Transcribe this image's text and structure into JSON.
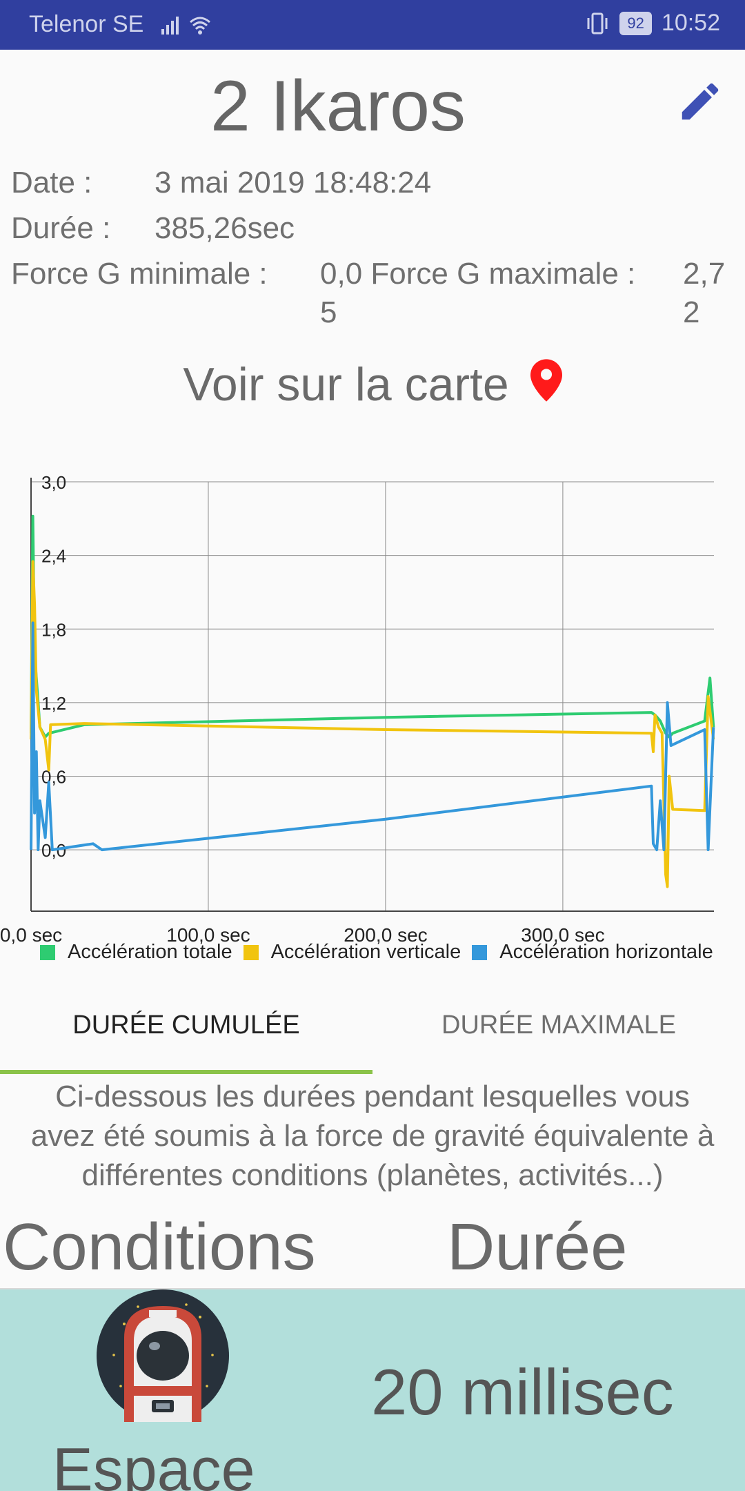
{
  "status_bar": {
    "carrier": "Telenor SE",
    "battery": "92",
    "time": "10:52"
  },
  "session": {
    "title": "2 Ikaros",
    "date_label": "Date :",
    "date_value": "3 mai 2019 18:48:24",
    "duration_label": "Durée :",
    "duration_value": "385,26sec",
    "gmin_label": "Force G minimale :",
    "gmin_value_line1": "0,0 Force G maximale :",
    "gmin_value_line2": "5",
    "gmax_value_line1": "2,7",
    "gmax_value_line2": "2"
  },
  "map_link": {
    "label": "Voir sur la carte"
  },
  "chart_data": {
    "type": "line",
    "xlabel": "",
    "ylabel": "",
    "xlim": [
      0,
      385.26
    ],
    "ylim": [
      -0.5,
      3.0
    ],
    "y_ticks": [
      "3,0",
      "2,4",
      "1,8",
      "1,2",
      "0,6",
      "0,0"
    ],
    "y_tick_values": [
      3.0,
      2.4,
      1.8,
      1.2,
      0.6,
      0.0
    ],
    "x_ticks": [
      "0,0 sec",
      "100,0 sec",
      "200,0 sec",
      "300,0 sec"
    ],
    "x_tick_values": [
      0,
      100,
      200,
      300
    ],
    "grid": true,
    "legend_position": "bottom",
    "series": [
      {
        "name": "Accélération totale",
        "color": "#2ecc71",
        "points": [
          [
            0,
            0.95
          ],
          [
            1,
            2.72
          ],
          [
            2,
            1.6
          ],
          [
            3,
            1.4
          ],
          [
            4,
            1.2
          ],
          [
            5,
            1.0
          ],
          [
            8,
            0.92
          ],
          [
            10,
            0.95
          ],
          [
            30,
            1.02
          ],
          [
            200,
            1.08
          ],
          [
            350,
            1.12
          ],
          [
            352,
            1.1
          ],
          [
            355,
            1.05
          ],
          [
            358,
            0.95
          ],
          [
            360,
            0.92
          ],
          [
            362,
            0.95
          ],
          [
            380,
            1.05
          ],
          [
            383,
            1.4
          ],
          [
            385,
            1.0
          ]
        ]
      },
      {
        "name": "Accélération verticale",
        "color": "#f1c40f",
        "points": [
          [
            0,
            0.9
          ],
          [
            1,
            2.35
          ],
          [
            2,
            2.0
          ],
          [
            3,
            1.3
          ],
          [
            5,
            1.0
          ],
          [
            8,
            0.9
          ],
          [
            10,
            0.65
          ],
          [
            11,
            1.02
          ],
          [
            30,
            1.03
          ],
          [
            200,
            0.98
          ],
          [
            350,
            0.95
          ],
          [
            351,
            0.8
          ],
          [
            352,
            1.1
          ],
          [
            354,
            1.0
          ],
          [
            356,
            0.95
          ],
          [
            358,
            -0.2
          ],
          [
            359,
            -0.3
          ],
          [
            360,
            0.6
          ],
          [
            362,
            0.33
          ],
          [
            380,
            0.32
          ],
          [
            382,
            1.25
          ],
          [
            385,
            0.9
          ]
        ]
      },
      {
        "name": "Accélération horizontale",
        "color": "#3498db",
        "points": [
          [
            0,
            0.0
          ],
          [
            1,
            1.85
          ],
          [
            2,
            0.3
          ],
          [
            3,
            0.8
          ],
          [
            4,
            0.0
          ],
          [
            5,
            0.4
          ],
          [
            8,
            0.1
          ],
          [
            10,
            0.55
          ],
          [
            12,
            0.0
          ],
          [
            35,
            0.05
          ],
          [
            40,
            0.0
          ],
          [
            200,
            0.25
          ],
          [
            350,
            0.52
          ],
          [
            351,
            0.05
          ],
          [
            353,
            0.0
          ],
          [
            355,
            0.4
          ],
          [
            357,
            0.0
          ],
          [
            359,
            1.2
          ],
          [
            361,
            0.85
          ],
          [
            380,
            0.98
          ],
          [
            382,
            0.0
          ],
          [
            385,
            1.0
          ]
        ]
      }
    ]
  },
  "tabs": [
    {
      "label": "DURÉE CUMULÉE",
      "active": true
    },
    {
      "label": "DURÉE MAXIMALE",
      "active": false
    }
  ],
  "description": {
    "line1": "Ci-dessous les durées pendant lesquelles vous",
    "line2": "avez été soumis à la force de gravité équivalente à",
    "line3": "différentes conditions (planètes, activités...)"
  },
  "table": {
    "header_conditions": "Conditions",
    "header_duration": "Durée",
    "rows": [
      {
        "condition": "Espace",
        "duration": "20 millisec",
        "icon": "astronaut-icon"
      }
    ]
  },
  "colors": {
    "status_bar": "#303f9f",
    "edit_icon": "#3f51b5",
    "map_pin": "#ff1a1a",
    "tab_indicator": "#8bc34a",
    "row_background": "#b2dfdb"
  }
}
